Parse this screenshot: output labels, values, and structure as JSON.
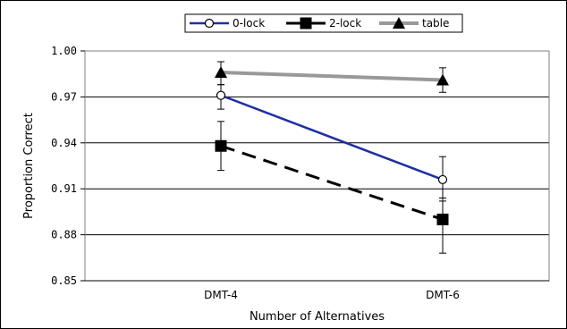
{
  "chart_data": {
    "type": "line",
    "title": "",
    "xlabel": "Number of Alternatives",
    "ylabel": "Proportion Correct",
    "categories": [
      "DMT-4",
      "DMT-6"
    ],
    "ylim": [
      0.85,
      1.0
    ],
    "yticks": [
      0.85,
      0.88,
      0.91,
      0.94,
      0.97,
      1.0
    ],
    "ytick_labels": [
      "0.85",
      "0.88",
      "0.91",
      "0.94",
      "0.97",
      "1.00"
    ],
    "grid": "horizontal",
    "legend_position": "top-center",
    "series": [
      {
        "name": "0-lock",
        "values": [
          0.971,
          0.916
        ],
        "error_low": [
          0.962,
          0.902
        ],
        "error_high": [
          0.978,
          0.931
        ],
        "color": "#1f2fa0",
        "dash": "solid",
        "marker": "circle-open"
      },
      {
        "name": "2-lock",
        "values": [
          0.938,
          0.89
        ],
        "error_low": [
          0.922,
          0.868
        ],
        "error_high": [
          0.954,
          0.904
        ],
        "color": "#000000",
        "dash": "dashed",
        "marker": "square"
      },
      {
        "name": "table",
        "values": [
          0.986,
          0.981
        ],
        "error_low": [
          0.978,
          0.973
        ],
        "error_high": [
          0.993,
          0.989
        ],
        "color": "#999999",
        "dash": "solid",
        "marker": "triangle"
      }
    ]
  }
}
